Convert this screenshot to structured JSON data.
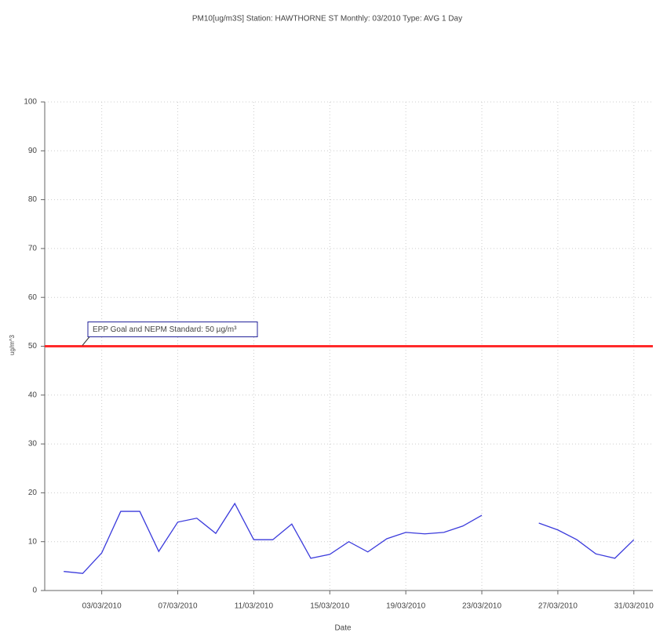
{
  "chart_data": {
    "type": "line",
    "title": "PM10[ug/m3S] Station: HAWTHORNE ST  Monthly: 03/2010  Type: AVG 1 Day",
    "x_label": "Date",
    "y_label": "ug/m^3",
    "x": [
      "2010-03-01",
      "2010-03-02",
      "2010-03-03",
      "2010-03-04",
      "2010-03-05",
      "2010-03-06",
      "2010-03-07",
      "2010-03-08",
      "2010-03-09",
      "2010-03-10",
      "2010-03-11",
      "2010-03-12",
      "2010-03-13",
      "2010-03-14",
      "2010-03-15",
      "2010-03-16",
      "2010-03-17",
      "2010-03-18",
      "2010-03-19",
      "2010-03-20",
      "2010-03-21",
      "2010-03-22",
      "2010-03-23",
      "2010-03-24",
      "2010-03-25",
      "2010-03-26",
      "2010-03-27",
      "2010-03-28",
      "2010-03-29",
      "2010-03-30",
      "2010-03-31"
    ],
    "series": [
      {
        "name": "PM10",
        "color": "#3b3bdc",
        "values": [
          3.9,
          3.5,
          7.7,
          16.2,
          16.2,
          8.0,
          14.0,
          14.8,
          11.7,
          17.8,
          10.4,
          10.4,
          13.6,
          6.6,
          7.4,
          10.0,
          7.9,
          10.6,
          11.9,
          11.6,
          11.9,
          13.2,
          15.4,
          null,
          null,
          13.8,
          12.4,
          10.4,
          7.5,
          6.6,
          10.4
        ]
      }
    ],
    "xlim": [
      "2010-02-28",
      "2010-04-01"
    ],
    "xticks": [
      {
        "value": "2010-03-03",
        "label": "03/03/2010"
      },
      {
        "value": "2010-03-07",
        "label": "07/03/2010"
      },
      {
        "value": "2010-03-11",
        "label": "11/03/2010"
      },
      {
        "value": "2010-03-15",
        "label": "15/03/2010"
      },
      {
        "value": "2010-03-19",
        "label": "19/03/2010"
      },
      {
        "value": "2010-03-23",
        "label": "23/03/2010"
      },
      {
        "value": "2010-03-27",
        "label": "27/03/2010"
      },
      {
        "value": "2010-03-31",
        "label": "31/03/2010"
      }
    ],
    "ylim": [
      0,
      100
    ],
    "yticks": [
      0,
      10,
      20,
      30,
      40,
      50,
      60,
      70,
      80,
      90,
      100
    ],
    "grid": true,
    "reference_line": {
      "value": 50,
      "label": "EPP Goal and NEPM Standard: 50 µg/m³",
      "color": "#ff2a2a"
    }
  }
}
